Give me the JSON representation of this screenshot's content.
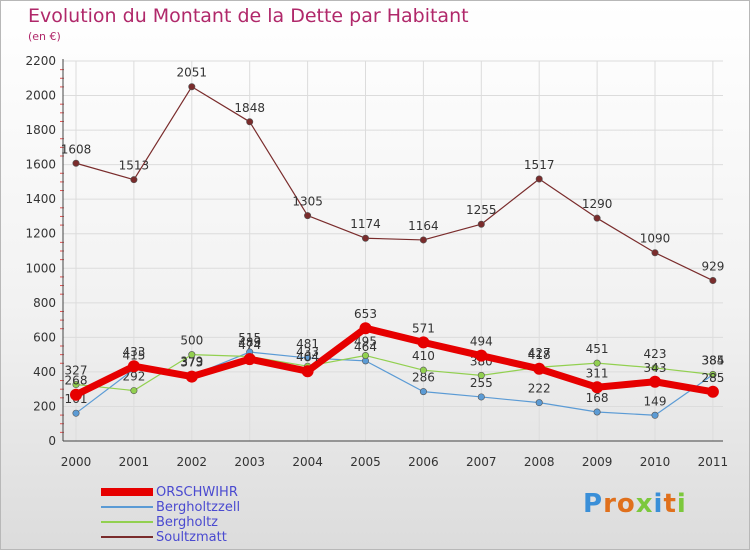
{
  "title": "Evolution du Montant de la Dette par Habitant",
  "subtitle": "(en €)",
  "logo": {
    "letters": [
      "P",
      "r",
      "o",
      "x",
      "i",
      "t",
      "i"
    ],
    "colors": [
      "#3a8fd8",
      "#e0701c",
      "#e0701c",
      "#7cc83c",
      "#3a8fd8",
      "#e0701c",
      "#7cc83c"
    ]
  },
  "chart_data": {
    "type": "line",
    "x": [
      "2000",
      "2001",
      "2002",
      "2003",
      "2004",
      "2005",
      "2006",
      "2007",
      "2008",
      "2009",
      "2010",
      "2011"
    ],
    "y_ticks": [
      "0",
      "200",
      "400",
      "600",
      "800",
      "1000",
      "1200",
      "1400",
      "1600",
      "1800",
      "2000",
      "2200"
    ],
    "ylim": [
      0,
      2200
    ],
    "grid": true,
    "legend_position": "bottom-left",
    "series": [
      {
        "name": "Soultzmatt",
        "color": "#7a2c2c",
        "width": 1.2,
        "values": [
          1608,
          1513,
          2051,
          1848,
          1305,
          1174,
          1164,
          1255,
          1517,
          1290,
          1090,
          929
        ],
        "labels": [
          "1608",
          "1513",
          "2051",
          "1848",
          "1305",
          "1174",
          "1164",
          "1255",
          "1517",
          "1290",
          "1090",
          "929"
        ]
      },
      {
        "name": "Bergholtzzell",
        "color": "#5b9bd5",
        "width": 1.2,
        "values": [
          161,
          415,
          379,
          515,
          481,
          464,
          286,
          255,
          222,
          168,
          149,
          384
        ],
        "labels": [
          "161",
          "415",
          "379",
          "515",
          "481",
          "464",
          "286",
          "255",
          "222",
          "168",
          "149",
          "384"
        ]
      },
      {
        "name": "Bergholtz",
        "color": "#92d050",
        "width": 1.2,
        "values": [
          327,
          292,
          500,
          489,
          433,
          495,
          410,
          380,
          427,
          451,
          423,
          385
        ],
        "labels": [
          "327",
          "292",
          "500",
          "489",
          "433",
          "495",
          "410",
          "380",
          "427",
          "451",
          "423",
          "385"
        ]
      },
      {
        "name": "ORSCHWIHR",
        "color": "#e60000",
        "width": 7,
        "values": [
          268,
          433,
          373,
          474,
          404,
          653,
          571,
          494,
          418,
          311,
          343,
          285
        ],
        "labels": [
          "268",
          "433",
          "373",
          "474",
          "404",
          "653",
          "571",
          "494",
          "418",
          "311",
          "343",
          "285"
        ]
      }
    ]
  }
}
